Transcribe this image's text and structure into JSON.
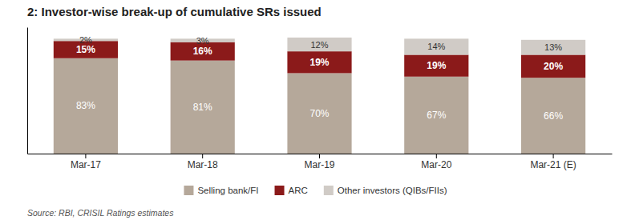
{
  "chart_data": {
    "type": "bar",
    "stacked": true,
    "title": "2: Investor-wise break-up of cumulative SRs issued",
    "source": "Source: RBI, CRISIL Ratings estimates",
    "categories": [
      "Mar-17",
      "Mar-18",
      "Mar-19",
      "Mar-20",
      "Mar-21 (E)"
    ],
    "series": [
      {
        "name": "Selling bank/FI",
        "color": "#b5a89a",
        "values": [
          83,
          81,
          70,
          67,
          66
        ],
        "value_labels": [
          "83%",
          "81%",
          "70%",
          "67%",
          "66%"
        ]
      },
      {
        "name": "ARC",
        "color": "#8b1a1a",
        "values": [
          15,
          16,
          19,
          19,
          20
        ],
        "value_labels": [
          "15%",
          "16%",
          "19%",
          "19%",
          "20%"
        ]
      },
      {
        "name": "Other investors (QIBs/FIIs)",
        "color": "#d0cbc6",
        "values": [
          2,
          3,
          12,
          14,
          13
        ],
        "value_labels": [
          "2%",
          "3%",
          "12%",
          "14%",
          "13%"
        ]
      }
    ],
    "ylim": [
      0,
      110
    ],
    "yticks": [],
    "tick_labels": "x",
    "data_labels": true,
    "grid": false,
    "legend": "bottom"
  }
}
